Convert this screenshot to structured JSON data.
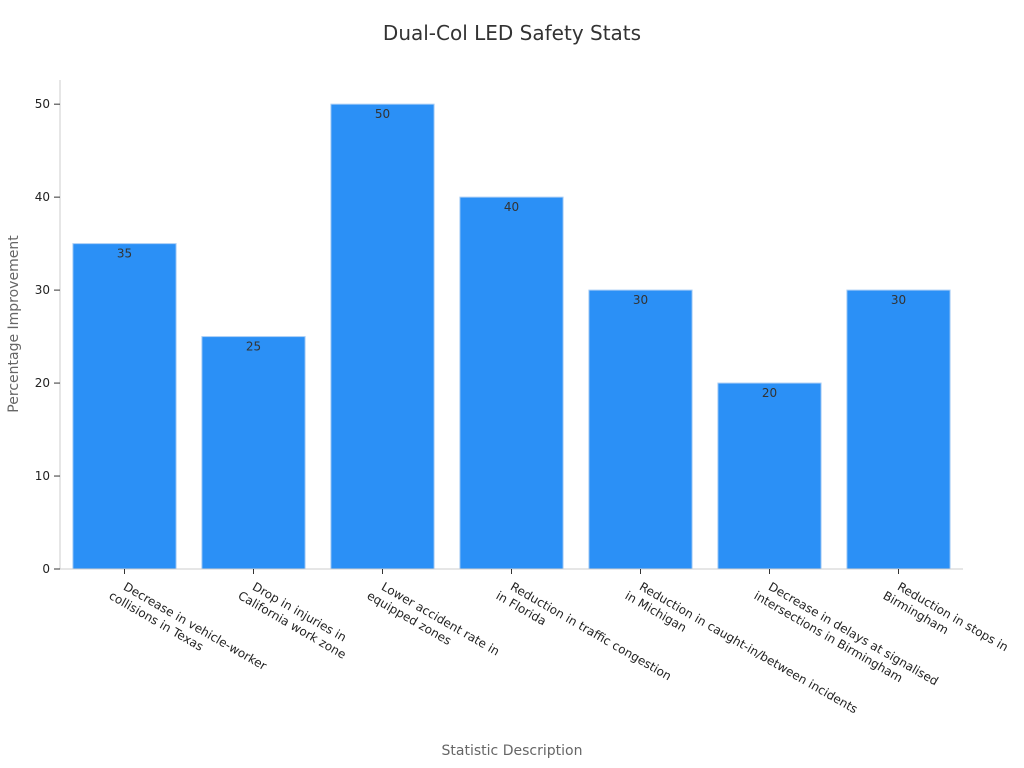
{
  "chart_data": {
    "type": "bar",
    "title": "Dual-Col LED Safety Stats",
    "xlabel": "Statistic Description",
    "ylabel": "Percentage Improvement",
    "categories": [
      [
        "Decrease in vehicle-worker",
        "collisions in Texas"
      ],
      [
        "Drop in injuries in",
        "California work zone"
      ],
      [
        "Lower accident rate in",
        "equipped zones"
      ],
      [
        "Reduction in traffic congestion",
        "in Florida"
      ],
      [
        "Reduction in caught-in/between incidents",
        "in Michigan"
      ],
      [
        "Decrease in delays at signalised",
        "intersections in Birmingham"
      ],
      [
        "Reduction in stops in",
        "Birmingham"
      ]
    ],
    "values": [
      35,
      25,
      50,
      40,
      30,
      20,
      30
    ],
    "ylim": [
      0,
      52.6
    ],
    "yticks": [
      0,
      10,
      20,
      30,
      40,
      50
    ],
    "grid": false,
    "legend": "none",
    "bar_color": "#2b90f6",
    "bar_edge_color": "#a8cdf5"
  }
}
